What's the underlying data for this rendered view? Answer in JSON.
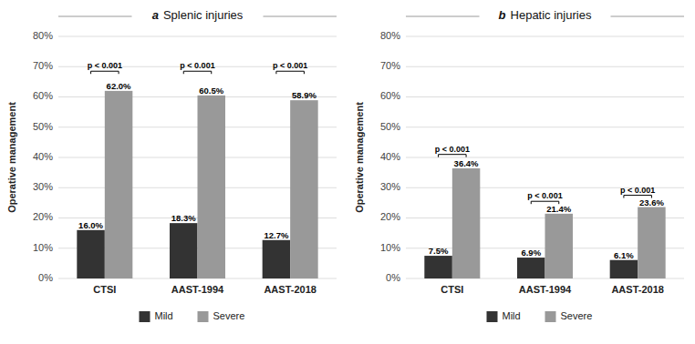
{
  "chart_data": [
    {
      "type": "bar",
      "title": "a",
      "subtitle": "Splenic injuries",
      "categories": [
        "CTSI",
        "AAST-1994",
        "AAST-2018"
      ],
      "series": [
        {
          "name": "Mild",
          "color": "#333333",
          "values": [
            16.0,
            18.3,
            12.7
          ],
          "value_labels": [
            "16.0%",
            "18.3%",
            "12.7%"
          ]
        },
        {
          "name": "Severe",
          "color": "#999999",
          "values": [
            62.0,
            60.5,
            58.9
          ],
          "value_labels": [
            "62.0%",
            "60.5%",
            "58.9%"
          ]
        }
      ],
      "annotations": [
        {
          "text": "p < 0.001",
          "x": "CTSI",
          "y": 68.5
        },
        {
          "text": "p < 0.001",
          "x": "AAST-1994",
          "y": 68.5
        },
        {
          "text": "p < 0.001",
          "x": "AAST-2018",
          "y": 68.5
        }
      ],
      "y_label": "Operative management",
      "ylim": [
        0,
        80
      ],
      "yticks": [
        {
          "value": 0,
          "label": "0%"
        },
        {
          "value": 10,
          "label": "10%"
        },
        {
          "value": 20,
          "label": "20%"
        },
        {
          "value": 30,
          "label": "30%"
        },
        {
          "value": 40,
          "label": "40%"
        },
        {
          "value": 50,
          "label": "50%"
        },
        {
          "value": 60,
          "label": "60%"
        },
        {
          "value": 70,
          "label": "70%"
        },
        {
          "value": 80,
          "label": "80%"
        }
      ],
      "grid": true,
      "legend": "bottom",
      "data_labels": true
    },
    {
      "type": "bar",
      "title": "b",
      "subtitle": "Hepatic injuries",
      "categories": [
        "CTSI",
        "AAST-1994",
        "AAST-2018"
      ],
      "series": [
        {
          "name": "Mild",
          "color": "#333333",
          "values": [
            7.5,
            6.9,
            6.1
          ],
          "value_labels": [
            "7.5%",
            "6.9%",
            "6.1%"
          ]
        },
        {
          "name": "Severe",
          "color": "#999999",
          "values": [
            36.4,
            21.4,
            23.6
          ],
          "value_labels": [
            "36.4%",
            "21.4%",
            "23.6%"
          ]
        }
      ],
      "annotations": [
        {
          "text": "p < 0.001",
          "x": "CTSI",
          "y": 41.0
        },
        {
          "text": "p < 0.001",
          "x": "AAST-1994",
          "y": 25.5
        },
        {
          "text": "p < 0.001",
          "x": "AAST-2018",
          "y": 27.5
        }
      ],
      "y_label": "Operative management",
      "ylim": [
        0,
        80
      ],
      "yticks": [
        {
          "value": 0,
          "label": "0%"
        },
        {
          "value": 10,
          "label": "10%"
        },
        {
          "value": 20,
          "label": "20%"
        },
        {
          "value": 30,
          "label": "30%"
        },
        {
          "value": 40,
          "label": "40%"
        },
        {
          "value": 50,
          "label": "50%"
        },
        {
          "value": 60,
          "label": "60%"
        },
        {
          "value": 70,
          "label": "70%"
        },
        {
          "value": 80,
          "label": "80%"
        }
      ],
      "grid": true,
      "legend": "bottom",
      "data_labels": true
    }
  ]
}
